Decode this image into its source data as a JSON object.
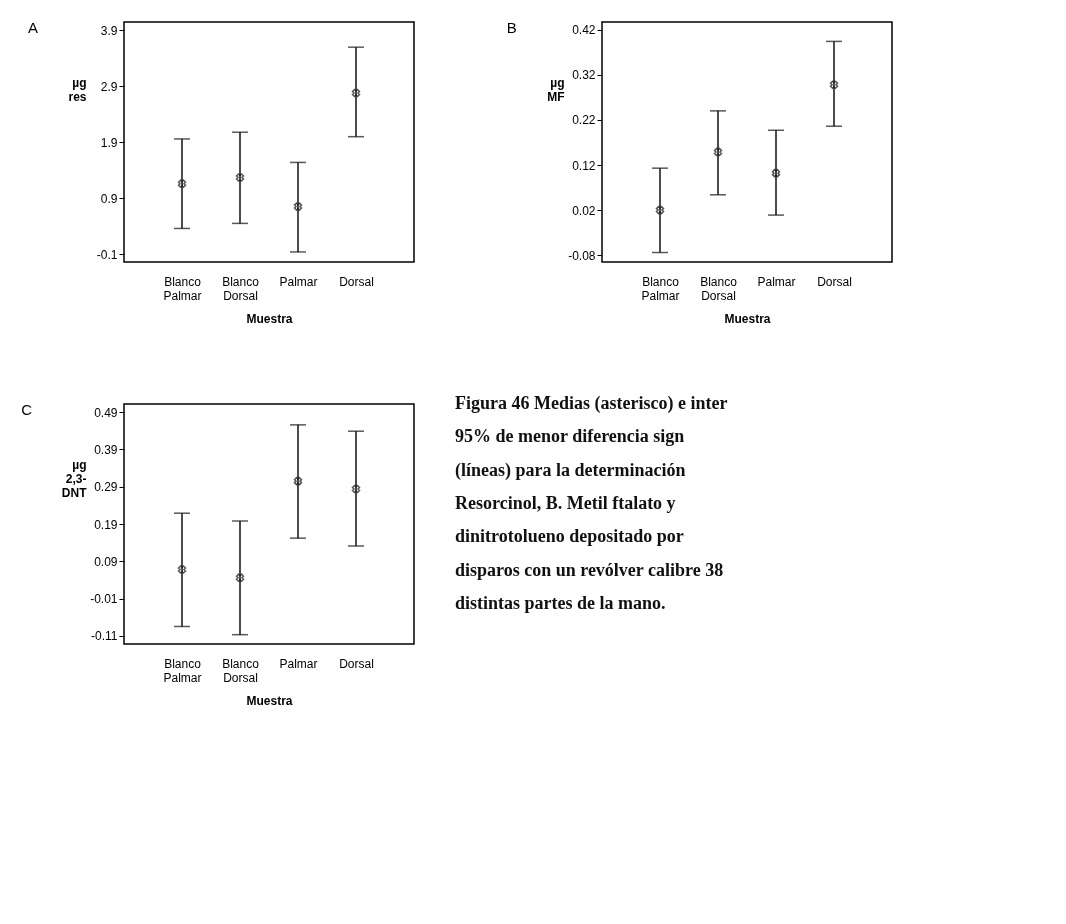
{
  "chart_data": [
    {
      "type": "scatter",
      "title": "A",
      "xlabel": "Muestra",
      "ylabel": "µg\nres",
      "categories": [
        "Blanco Palmar",
        "Blanco Dorsal",
        "Palmar",
        "Dorsal"
      ],
      "ylim": [
        -0.24,
        4.05
      ],
      "yticks": [
        -0.1,
        0.9,
        1.9,
        2.9,
        3.9
      ],
      "grid": false,
      "marker": "cross",
      "series": [
        {
          "color": "#111111",
          "values": [
            1.16,
            1.27,
            0.75,
            2.78
          ],
          "errors": [
            [
              0.36,
              1.96
            ],
            [
              0.45,
              2.08
            ],
            [
              -0.06,
              1.54
            ],
            [
              2.0,
              3.6
            ]
          ]
        }
      ]
    },
    {
      "type": "scatter",
      "title": "B",
      "xlabel": "Muestra",
      "ylabel": "µg\nMF",
      "categories": [
        "Blanco Palmar",
        "Blanco Dorsal",
        "Palmar",
        "Dorsal"
      ],
      "ylim": [
        -0.095,
        0.437
      ],
      "yticks": [
        -0.08,
        0.02,
        0.12,
        0.22,
        0.32,
        0.42
      ],
      "grid": false,
      "marker": "cross",
      "series": [
        {
          "color": "#111111",
          "values": [
            0.02,
            0.149,
            0.102,
            0.298
          ],
          "errors": [
            [
              -0.074,
              0.113
            ],
            [
              0.054,
              0.24
            ],
            [
              0.009,
              0.197
            ],
            [
              0.206,
              0.394
            ]
          ]
        }
      ]
    },
    {
      "type": "scatter",
      "title": "C",
      "xlabel": "Muestra",
      "ylabel": "µg\n2,3-\nDNT",
      "categories": [
        "Blanco Palmar",
        "Blanco Dorsal",
        "Palmar",
        "Dorsal"
      ],
      "ylim": [
        -0.132,
        0.512
      ],
      "yticks": [
        -0.11,
        -0.01,
        0.09,
        0.19,
        0.29,
        0.39,
        0.49
      ],
      "grid": false,
      "marker": "cross",
      "series": [
        {
          "color": "#111111",
          "values": [
            0.068,
            0.046,
            0.305,
            0.284
          ],
          "errors": [
            [
              -0.085,
              0.219
            ],
            [
              -0.107,
              0.198
            ],
            [
              0.152,
              0.456
            ],
            [
              0.131,
              0.439
            ]
          ]
        }
      ]
    },
    {
      "type": "other",
      "annotations": [
        "Figura 46 Medias (asterisco) e inter",
        "95% de menor diferencia sign",
        "(líneas) para la determinación",
        "Resorcinol, B. Metil ftalato y",
        "dinitrotolueno depositado por",
        "disparos con un revólver calibre 38",
        "distintas partes de la mano."
      ]
    }
  ]
}
